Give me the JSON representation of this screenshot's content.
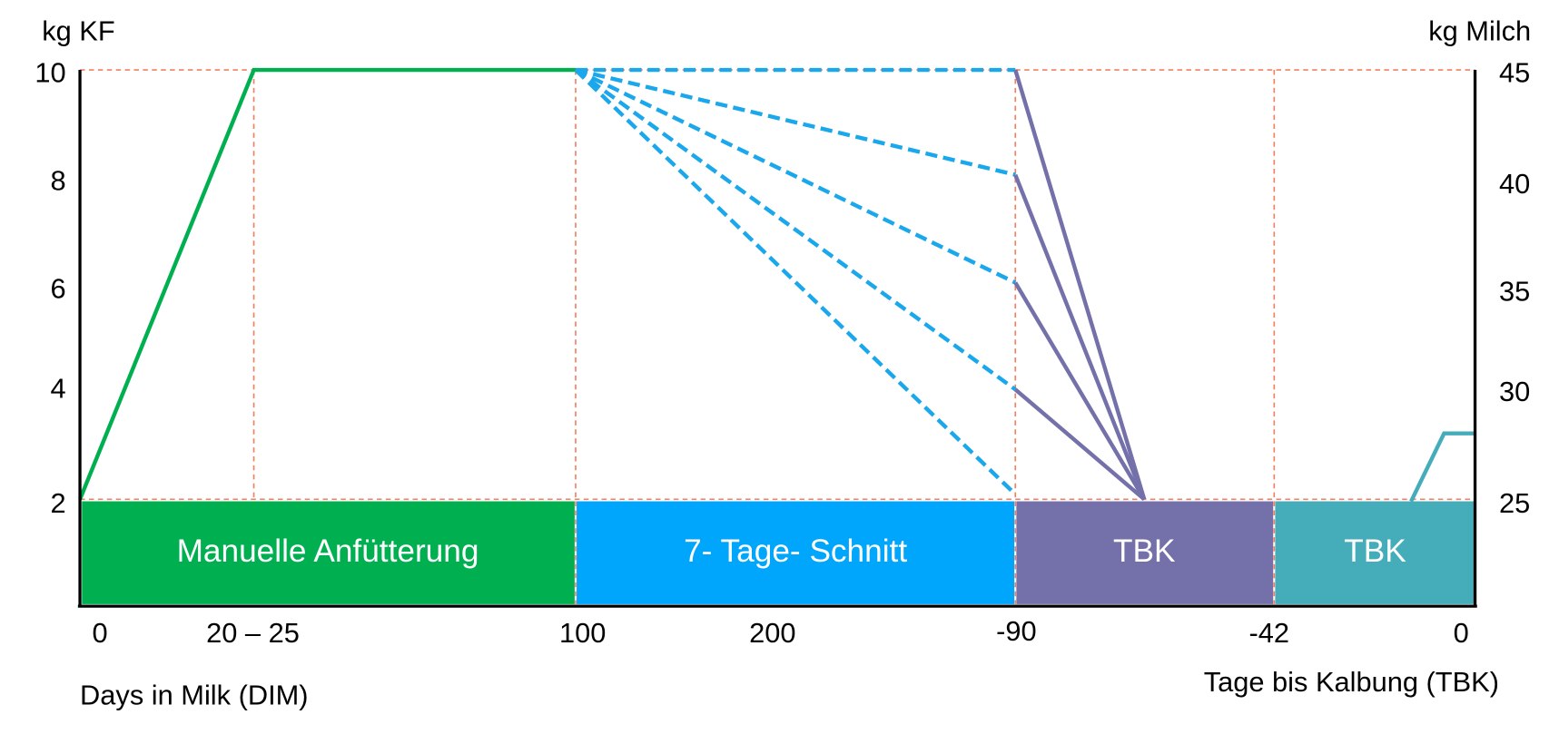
{
  "y_axis_left": {
    "title": "kg KF",
    "ticks": [
      "10",
      "8",
      "6",
      "4",
      "2"
    ]
  },
  "y_axis_right": {
    "title": "kg Milch",
    "ticks": [
      "45",
      "40",
      "35",
      "30",
      "25"
    ]
  },
  "x_axis": {
    "ticks": [
      "0",
      "20 – 25",
      "100",
      "200",
      "-90",
      "-42",
      "0"
    ],
    "title_left": "Days in Milk (DIM)",
    "title_right": "Tage bis Kalbung (TBK)"
  },
  "phases": [
    "Manuelle Anfütterung",
    "7- Tage- Schnitt",
    "TBK",
    "TBK"
  ]
}
